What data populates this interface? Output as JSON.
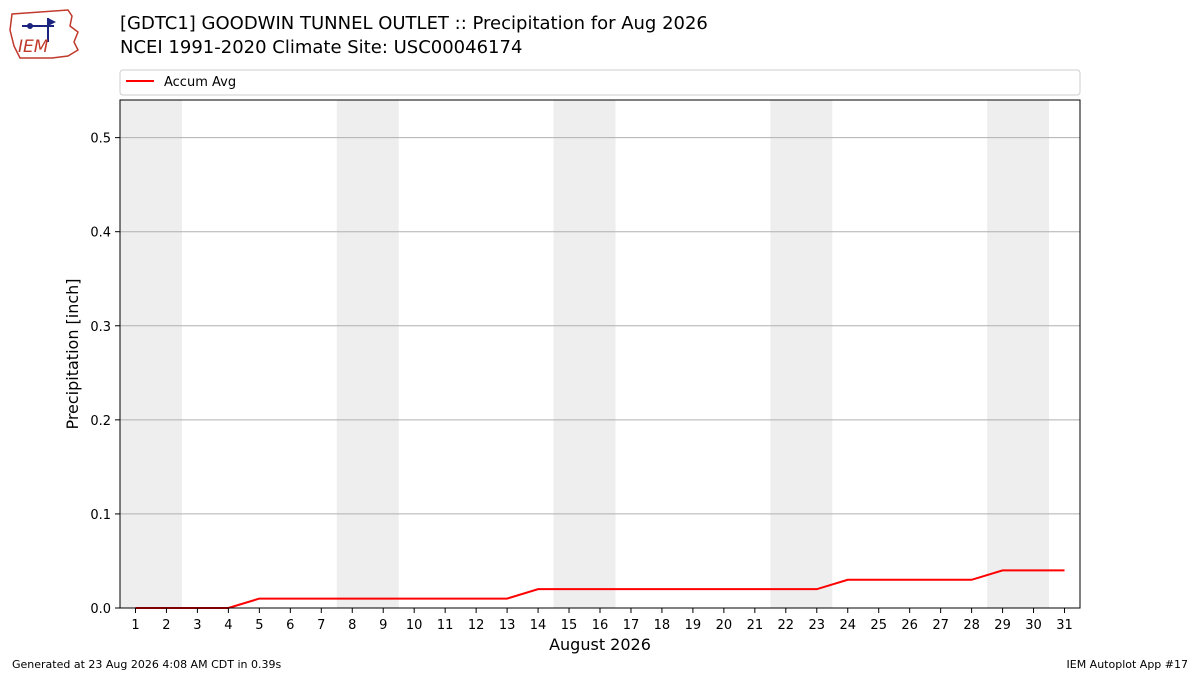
{
  "header": {
    "logo_text": "IEM",
    "title": "[GDTC1] GOODWIN TUNNEL OUTLET :: Precipitation for Aug 2026",
    "subtitle": "NCEI 1991-2020 Climate Site: USC00046174"
  },
  "footer": {
    "generated": "Generated at 23 Aug 2026 4:08 AM CDT in 0.39s",
    "app": "IEM Autoplot App #17"
  },
  "chart_data": {
    "type": "line",
    "xlabel": "August 2026",
    "ylabel": "Precipitation [inch]",
    "xlim": [
      0.5,
      31.5
    ],
    "ylim": [
      0,
      0.54
    ],
    "yticks": [
      0.0,
      0.1,
      0.2,
      0.3,
      0.4,
      0.5
    ],
    "ytick_labels": [
      "0.0",
      "0.1",
      "0.2",
      "0.3",
      "0.4",
      "0.5"
    ],
    "x": [
      1,
      2,
      3,
      4,
      5,
      6,
      7,
      8,
      9,
      10,
      11,
      12,
      13,
      14,
      15,
      16,
      17,
      18,
      19,
      20,
      21,
      22,
      23,
      24,
      25,
      26,
      27,
      28,
      29,
      30,
      31
    ],
    "xtick_labels": [
      "1",
      "2",
      "3",
      "4",
      "5",
      "6",
      "7",
      "8",
      "9",
      "10",
      "11",
      "12",
      "13",
      "14",
      "15",
      "16",
      "17",
      "18",
      "19",
      "20",
      "21",
      "22",
      "23",
      "24",
      "25",
      "26",
      "27",
      "28",
      "29",
      "30",
      "31"
    ],
    "weekend_bands": [
      [
        1,
        2
      ],
      [
        8,
        9
      ],
      [
        15,
        16
      ],
      [
        22,
        23
      ],
      [
        29,
        30
      ]
    ],
    "grid": "horizontal",
    "legend": "top",
    "series": [
      {
        "name": "Accum Avg",
        "color": "#ff0000",
        "values": [
          0.0,
          0.0,
          0.0,
          0.0,
          0.01,
          0.01,
          0.01,
          0.01,
          0.01,
          0.01,
          0.01,
          0.01,
          0.01,
          0.02,
          0.02,
          0.02,
          0.02,
          0.02,
          0.02,
          0.02,
          0.02,
          0.02,
          0.02,
          0.03,
          0.03,
          0.03,
          0.03,
          0.03,
          0.04,
          0.04,
          0.04
        ]
      }
    ]
  }
}
